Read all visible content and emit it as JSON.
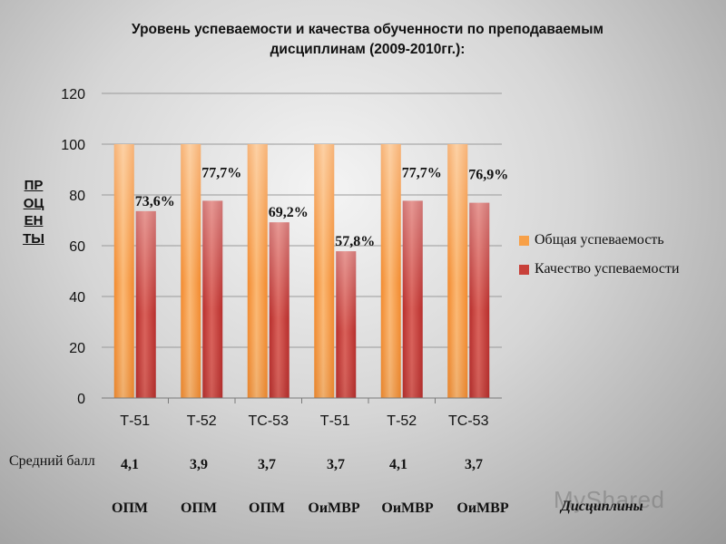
{
  "title": {
    "line1": "Уровень успеваемости и качества обученности по преподаваемым",
    "line2": "дисциплинам (2009-2010гг.):"
  },
  "yaxis_vertical_label": "ПРОЦЕНТЫ",
  "avg_caption": "Средний балл",
  "avg_values": [
    "4,1",
    "3,9",
    "3,7",
    "3,7",
    "4,1",
    "3,7"
  ],
  "disciplines": [
    "ОПМ",
    "ОПМ",
    "ОПМ",
    "ОиМВР",
    "ОиМВР",
    "ОиМВР"
  ],
  "disciplines_caption": "Дисциплины",
  "watermark": "MyShared",
  "legend": {
    "series1": "Общая успеваемость",
    "series2": "Качество успеваемости"
  },
  "colors": {
    "series1": "#f7a048",
    "series2": "#c8403a"
  },
  "chart_data": {
    "type": "bar",
    "categories": [
      "Т-51",
      "Т-52",
      "ТС-53",
      "Т-51",
      "Т-52",
      "ТС-53"
    ],
    "series": [
      {
        "name": "Общая успеваемость",
        "values": [
          100,
          100,
          100,
          100,
          100,
          100
        ]
      },
      {
        "name": "Качество успеваемости",
        "values": [
          73.6,
          77.7,
          69.2,
          57.8,
          77.7,
          76.9
        ]
      }
    ],
    "data_labels": [
      "73,6%",
      "77,7%",
      "69,2%",
      "57,8%",
      "77,7%",
      "76,9%"
    ],
    "ylim": [
      0,
      120
    ],
    "yticks": [
      0,
      20,
      40,
      60,
      80,
      100,
      120
    ],
    "grid": true,
    "legend_position": "right"
  }
}
